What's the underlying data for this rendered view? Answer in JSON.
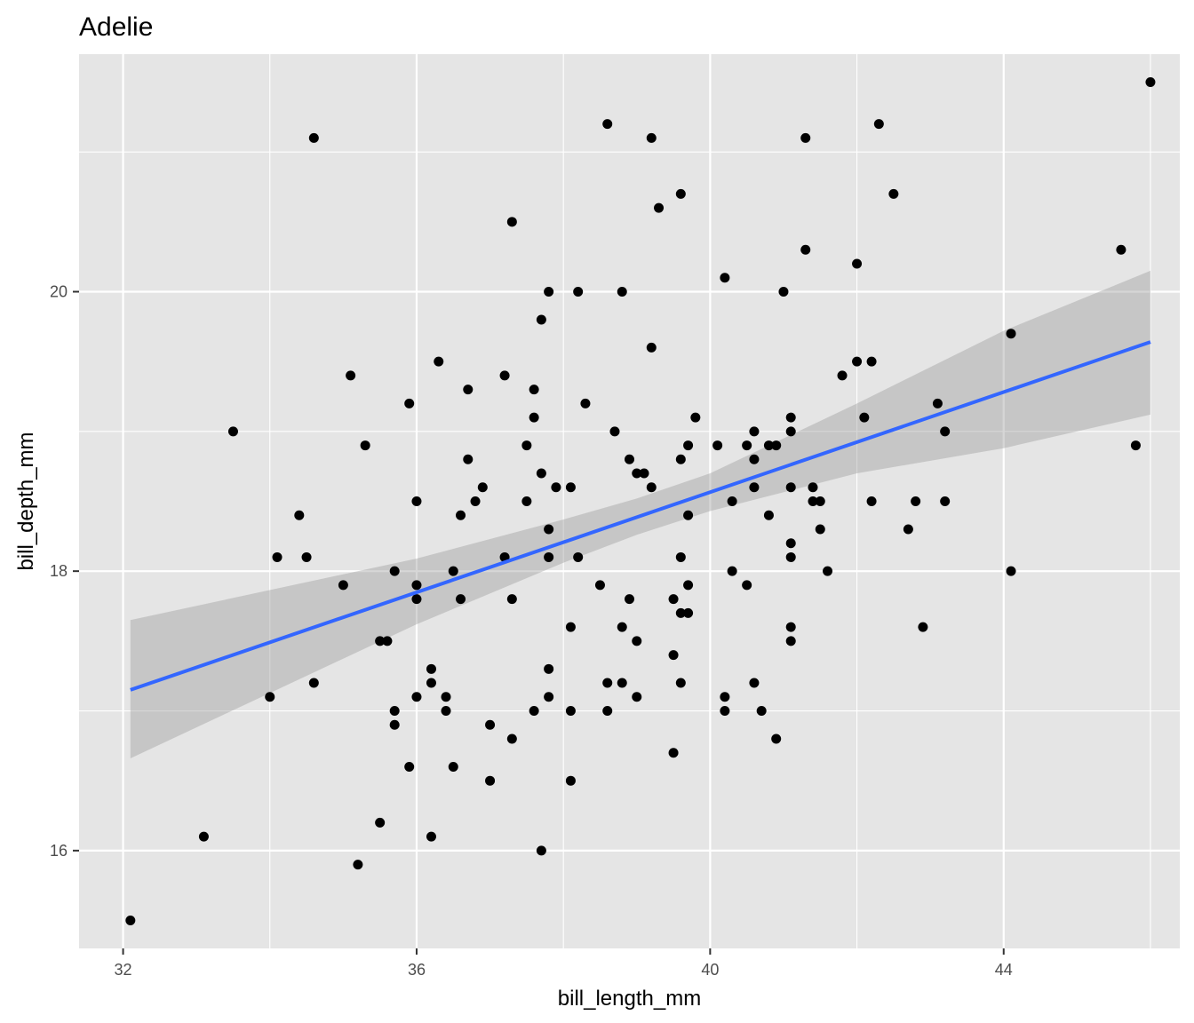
{
  "chart_data": {
    "type": "scatter",
    "title": "Adelie",
    "xlabel": "bill_length_mm",
    "ylabel": "bill_depth_mm",
    "xlim": [
      31.4,
      46.4
    ],
    "ylim": [
      15.3,
      21.7
    ],
    "x_ticks": [
      32,
      36,
      40,
      44
    ],
    "y_ticks": [
      16,
      18,
      20
    ],
    "grid": true,
    "legend": "none",
    "colors": {
      "panel_background": "#e5e5e5",
      "grid": "#ffffff",
      "points": "#000000",
      "fit_line": "#3366ff",
      "confidence_band": "#999999"
    },
    "series": [
      {
        "type": "scatter",
        "points": [
          [
            32.1,
            15.5
          ],
          [
            33.1,
            16.1
          ],
          [
            33.5,
            19.0
          ],
          [
            34.0,
            17.1
          ],
          [
            34.1,
            18.1
          ],
          [
            34.4,
            18.4
          ],
          [
            34.5,
            18.1
          ],
          [
            34.6,
            21.1
          ],
          [
            34.6,
            17.2
          ],
          [
            35.0,
            17.9
          ],
          [
            35.1,
            19.4
          ],
          [
            35.2,
            15.9
          ],
          [
            35.3,
            18.9
          ],
          [
            35.5,
            17.5
          ],
          [
            35.5,
            16.2
          ],
          [
            35.6,
            17.5
          ],
          [
            35.7,
            18.0
          ],
          [
            35.7,
            17.0
          ],
          [
            35.7,
            16.9
          ],
          [
            35.9,
            19.2
          ],
          [
            35.9,
            16.6
          ],
          [
            36.0,
            18.5
          ],
          [
            36.0,
            17.9
          ],
          [
            36.0,
            17.8
          ],
          [
            36.0,
            17.1
          ],
          [
            36.2,
            17.3
          ],
          [
            36.2,
            17.2
          ],
          [
            36.2,
            16.1
          ],
          [
            36.3,
            19.5
          ],
          [
            36.4,
            17.1
          ],
          [
            36.4,
            17.0
          ],
          [
            36.5,
            18.0
          ],
          [
            36.5,
            16.6
          ],
          [
            36.6,
            18.4
          ],
          [
            36.6,
            17.8
          ],
          [
            36.7,
            19.3
          ],
          [
            36.7,
            18.8
          ],
          [
            36.8,
            18.5
          ],
          [
            36.9,
            18.6
          ],
          [
            37.0,
            16.9
          ],
          [
            37.0,
            16.5
          ],
          [
            37.2,
            19.4
          ],
          [
            37.2,
            18.1
          ],
          [
            37.3,
            20.5
          ],
          [
            37.3,
            17.8
          ],
          [
            37.3,
            16.8
          ],
          [
            37.5,
            18.9
          ],
          [
            37.5,
            18.5
          ],
          [
            37.6,
            19.3
          ],
          [
            37.6,
            19.1
          ],
          [
            37.6,
            17.0
          ],
          [
            37.7,
            19.8
          ],
          [
            37.7,
            18.7
          ],
          [
            37.7,
            16.0
          ],
          [
            37.8,
            20.0
          ],
          [
            37.8,
            18.3
          ],
          [
            37.8,
            18.1
          ],
          [
            37.8,
            17.3
          ],
          [
            37.8,
            17.1
          ],
          [
            37.9,
            18.6
          ],
          [
            38.1,
            18.6
          ],
          [
            38.1,
            17.6
          ],
          [
            38.1,
            17.0
          ],
          [
            38.1,
            16.5
          ],
          [
            38.2,
            20.0
          ],
          [
            38.2,
            18.1
          ],
          [
            38.3,
            19.2
          ],
          [
            38.5,
            17.9
          ],
          [
            38.6,
            21.2
          ],
          [
            38.6,
            17.2
          ],
          [
            38.6,
            17.0
          ],
          [
            38.7,
            19.0
          ],
          [
            38.8,
            20.0
          ],
          [
            38.8,
            17.6
          ],
          [
            38.8,
            17.2
          ],
          [
            38.9,
            18.8
          ],
          [
            38.9,
            17.8
          ],
          [
            39.0,
            18.7
          ],
          [
            39.0,
            17.5
          ],
          [
            39.0,
            17.1
          ],
          [
            39.1,
            18.7
          ],
          [
            39.2,
            21.1
          ],
          [
            39.2,
            19.6
          ],
          [
            39.2,
            18.6
          ],
          [
            39.3,
            20.6
          ],
          [
            39.5,
            17.8
          ],
          [
            39.5,
            17.4
          ],
          [
            39.5,
            16.7
          ],
          [
            39.6,
            20.7
          ],
          [
            39.6,
            18.8
          ],
          [
            39.6,
            18.1
          ],
          [
            39.6,
            17.7
          ],
          [
            39.6,
            17.2
          ],
          [
            39.7,
            18.9
          ],
          [
            39.7,
            18.4
          ],
          [
            39.7,
            17.9
          ],
          [
            39.7,
            17.7
          ],
          [
            39.8,
            19.1
          ],
          [
            40.1,
            18.9
          ],
          [
            40.2,
            20.1
          ],
          [
            40.2,
            17.1
          ],
          [
            40.2,
            17.0
          ],
          [
            40.3,
            18.5
          ],
          [
            40.3,
            18.0
          ],
          [
            40.5,
            18.9
          ],
          [
            40.5,
            17.9
          ],
          [
            40.6,
            19.0
          ],
          [
            40.6,
            18.8
          ],
          [
            40.6,
            18.6
          ],
          [
            40.6,
            17.2
          ],
          [
            40.7,
            17.0
          ],
          [
            40.8,
            18.9
          ],
          [
            40.8,
            18.4
          ],
          [
            40.9,
            18.9
          ],
          [
            40.9,
            16.8
          ],
          [
            41.0,
            20.0
          ],
          [
            41.1,
            19.1
          ],
          [
            41.1,
            19.0
          ],
          [
            41.1,
            18.6
          ],
          [
            41.1,
            18.2
          ],
          [
            41.1,
            18.1
          ],
          [
            41.1,
            17.6
          ],
          [
            41.1,
            17.5
          ],
          [
            41.3,
            21.1
          ],
          [
            41.3,
            20.3
          ],
          [
            41.4,
            18.6
          ],
          [
            41.4,
            18.5
          ],
          [
            41.5,
            18.5
          ],
          [
            41.5,
            18.3
          ],
          [
            41.6,
            18.0
          ],
          [
            41.8,
            19.4
          ],
          [
            42.0,
            20.2
          ],
          [
            42.0,
            19.5
          ],
          [
            42.1,
            19.1
          ],
          [
            42.2,
            19.5
          ],
          [
            42.2,
            18.5
          ],
          [
            42.3,
            21.2
          ],
          [
            42.5,
            20.7
          ],
          [
            42.7,
            18.3
          ],
          [
            42.8,
            18.5
          ],
          [
            42.9,
            17.6
          ],
          [
            43.1,
            19.2
          ],
          [
            43.2,
            19.0
          ],
          [
            43.2,
            18.5
          ],
          [
            44.1,
            19.7
          ],
          [
            44.1,
            18.0
          ],
          [
            45.6,
            20.3
          ],
          [
            45.8,
            18.9
          ],
          [
            46.0,
            21.5
          ]
        ]
      },
      {
        "type": "smooth",
        "method": "linear fit with confidence band",
        "line": [
          [
            32.1,
            17.15
          ],
          [
            46.0,
            19.64
          ]
        ],
        "band": [
          [
            32.1,
            16.66,
            17.65
          ],
          [
            36.0,
            17.62,
            18.09
          ],
          [
            38.0,
            18.06,
            18.37
          ],
          [
            39.0,
            18.26,
            18.52
          ],
          [
            40.0,
            18.43,
            18.7
          ],
          [
            42.0,
            18.7,
            19.2
          ],
          [
            44.0,
            18.88,
            19.72
          ],
          [
            46.0,
            19.12,
            20.15
          ]
        ]
      }
    ]
  }
}
